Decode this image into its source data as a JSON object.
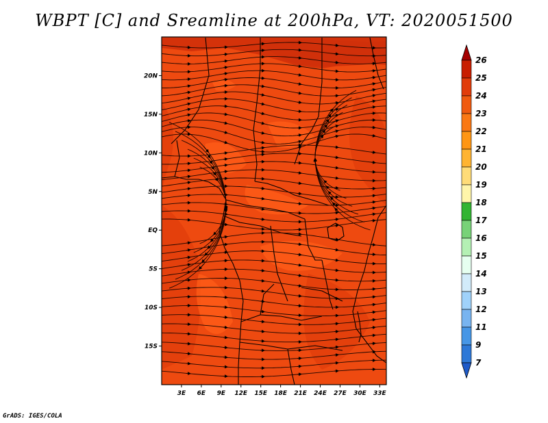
{
  "title": "WBPT [C] and Sreamline at 200hPa, VT: 2020051500",
  "credit": "GrADS: IGES/COLA",
  "map": {
    "lon_range": [
      0,
      34
    ],
    "lat_range": [
      -20,
      25
    ],
    "lon_ticks": [
      "3E",
      "6E",
      "9E",
      "12E",
      "15E",
      "18E",
      "21E",
      "24E",
      "27E",
      "30E",
      "33E"
    ],
    "lat_ticks": [
      "20N",
      "15N",
      "10N",
      "5N",
      "EQ",
      "5S",
      "10S",
      "15S"
    ],
    "field_colors": [
      "#ee4a10",
      "#e23f0c",
      "#d0300a",
      "#ff5e18"
    ]
  },
  "colorbar": {
    "labels": [
      "26",
      "25",
      "24",
      "23",
      "22",
      "21",
      "20",
      "19",
      "18",
      "17",
      "16",
      "15",
      "14",
      "13",
      "12",
      "11",
      "9",
      "7"
    ],
    "colors": [
      "#a50000",
      "#c81e00",
      "#e13c0a",
      "#f05a0f",
      "#fa7814",
      "#ff9614",
      "#ffb432",
      "#ffdc78",
      "#fff5aa",
      "#32b432",
      "#78d278",
      "#b4f0b4",
      "#e6fff0",
      "#d2ebfa",
      "#a0d2fa",
      "#78b4f0",
      "#4696e6",
      "#2d78d7",
      "#1e5ac8"
    ]
  }
}
